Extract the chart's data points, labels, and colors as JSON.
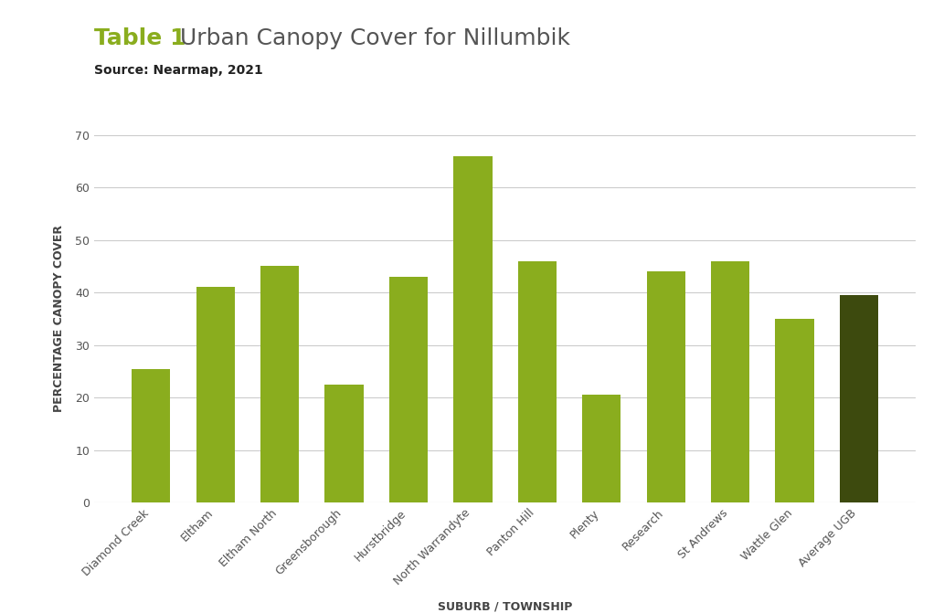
{
  "categories": [
    "Diamond Creek",
    "Eltham",
    "Eltham North",
    "Greensborough",
    "Hurstbridge",
    "North Warrandyte",
    "Panton Hill",
    "Plenty",
    "Research",
    "St Andrews",
    "Wattle Glen",
    "Average UGB"
  ],
  "values": [
    25.5,
    41.0,
    45.0,
    22.5,
    43.0,
    66.0,
    46.0,
    20.5,
    44.0,
    46.0,
    35.0,
    39.5
  ],
  "bar_colors": [
    "#8aad1e",
    "#8aad1e",
    "#8aad1e",
    "#8aad1e",
    "#8aad1e",
    "#8aad1e",
    "#8aad1e",
    "#8aad1e",
    "#8aad1e",
    "#8aad1e",
    "#8aad1e",
    "#3d4a0e"
  ],
  "title_prefix": "Table 1",
  "title_prefix_color": "#8aad1e",
  "title_main": "  Urban Canopy Cover for Nillumbik",
  "title_main_color": "#555555",
  "source_text": "Source: Nearmap, 2021",
  "ylabel": "PERCENTAGE CANOPY COVER",
  "xlabel": "SUBURB / TOWNSHIP",
  "ylim": [
    0,
    70
  ],
  "yticks": [
    0,
    10,
    20,
    30,
    40,
    50,
    60,
    70
  ],
  "background_color": "#ffffff",
  "grid_color": "#cccccc",
  "title_fontsize": 18,
  "source_fontsize": 10,
  "axis_label_fontsize": 9,
  "tick_fontsize": 9,
  "bar_width": 0.6
}
